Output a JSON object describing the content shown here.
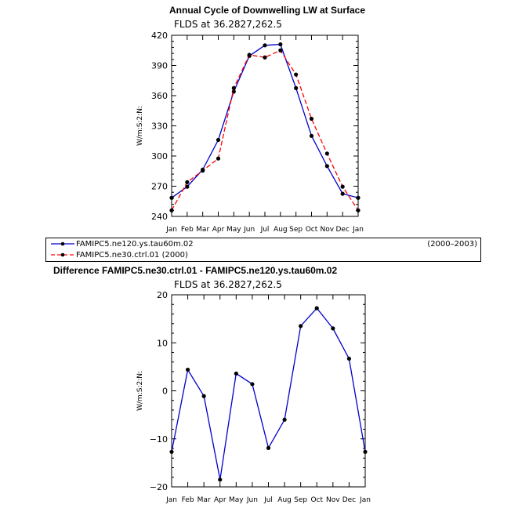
{
  "chart_data": [
    {
      "type": "line",
      "title": "Annual Cycle of Downwelling LW at Surface",
      "subtitle": "FLDS at 36.2827,262.5",
      "ylabel": "W/m:S:2:N:",
      "xlabel": "",
      "categories": [
        "Jan",
        "Feb",
        "Mar",
        "Apr",
        "May",
        "Jun",
        "Jul",
        "Aug",
        "Sep",
        "Oct",
        "Nov",
        "Dec",
        "Jan"
      ],
      "ylim": [
        240,
        420
      ],
      "yticks": [
        240,
        270,
        300,
        330,
        360,
        390,
        420
      ],
      "series": [
        {
          "name": "FAMIPC5.ne120.ys.tau60m.02",
          "color": "#0000cc",
          "dash": "solid",
          "values": [
            258.5,
            269.5,
            286.5,
            316,
            364,
            399.5,
            410,
            411,
            367.5,
            320,
            290,
            262.5,
            258.5
          ]
        },
        {
          "name": "FAMIPC5.ne30.ctrl.01",
          "color": "#ff0000",
          "dash": "dashed",
          "values": [
            246,
            274,
            285.5,
            297.5,
            367.5,
            400.5,
            398,
            405,
            381,
            337,
            302.5,
            269.5,
            246
          ]
        }
      ]
    },
    {
      "type": "line",
      "title": "Difference FAMIPC5.ne30.ctrl.01 - FAMIPC5.ne120.ys.tau60m.02",
      "subtitle": "FLDS at 36.2827,262.5",
      "ylabel": "W/m:S:2:N:",
      "xlabel": "",
      "categories": [
        "Jan",
        "Feb",
        "Mar",
        "Apr",
        "May",
        "Jun",
        "Jul",
        "Aug",
        "Sep",
        "Oct",
        "Nov",
        "Dec",
        "Jan"
      ],
      "ylim": [
        -20,
        20
      ],
      "yticks": [
        -20,
        -10,
        0,
        10,
        20
      ],
      "series": [
        {
          "name": "",
          "color": "#0000cc",
          "dash": "solid",
          "values": [
            -12.7,
            4.4,
            -1.1,
            -18.5,
            3.6,
            1.4,
            -11.9,
            -6.0,
            13.5,
            17.2,
            13.0,
            6.7,
            -12.7
          ]
        }
      ]
    }
  ],
  "legend": {
    "items": [
      {
        "label": "FAMIPC5.ne120.ys.tau60m.02",
        "period": "(2000–2003)",
        "color": "#0000cc",
        "dash": "solid"
      },
      {
        "label": "FAMIPC5.ne30.ctrl.01 (2000)",
        "period": "",
        "color": "#ff0000",
        "dash": "dashed"
      }
    ]
  }
}
